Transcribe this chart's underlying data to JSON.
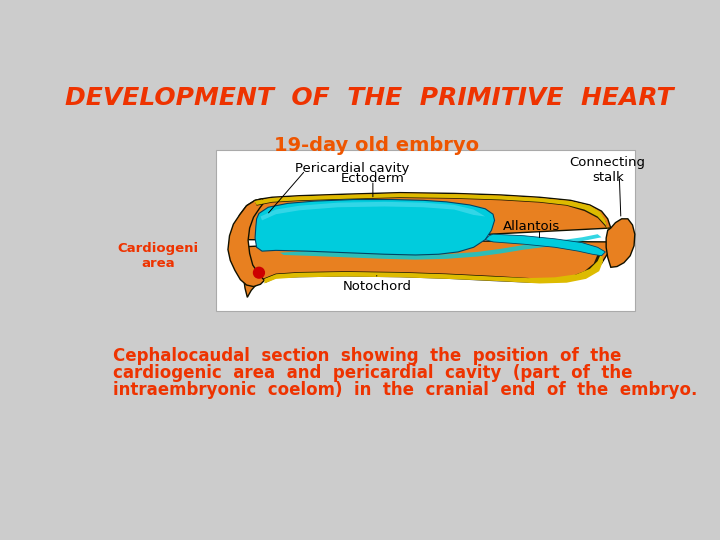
{
  "title": "DEVELOPMENT  OF  THE  PRIMITIVE  HEART",
  "title_color": "#EE3300",
  "title_fontsize": 18,
  "bg_color": "#CCCCCC",
  "subtitle": "19-day old embryo",
  "subtitle_color": "#EE5500",
  "subtitle_fontsize": 14,
  "label_cardiogenic": "Cardiogeni\narea",
  "label_cardiogenic_color": "#EE3300",
  "label_pericardial": "Pericardial cavity",
  "label_ectoderm": "Ectoderm",
  "label_notochord": "Notochord",
  "label_allantois": "Allantois",
  "label_connecting": "Connecting\nstalk",
  "body_text_line1": "Cephalocaudal  section  showing  the  position  of  the",
  "body_text_line2": "cardiogenic  area  and  pericardial  cavity  (part  of  the",
  "body_text_line3": "intraembryonic  coelom)  in  the  cranial  end  of  the  embryo.",
  "body_text_color": "#EE3300",
  "body_text_fontsize": 12,
  "diagram_bg": "#FFFFFF",
  "cyan_color": "#00CCDD",
  "cyan_light": "#55DDEE",
  "orange_color": "#E88020",
  "yellow_color": "#DDBB00",
  "dark_color": "#111100",
  "red_color": "#CC0000"
}
